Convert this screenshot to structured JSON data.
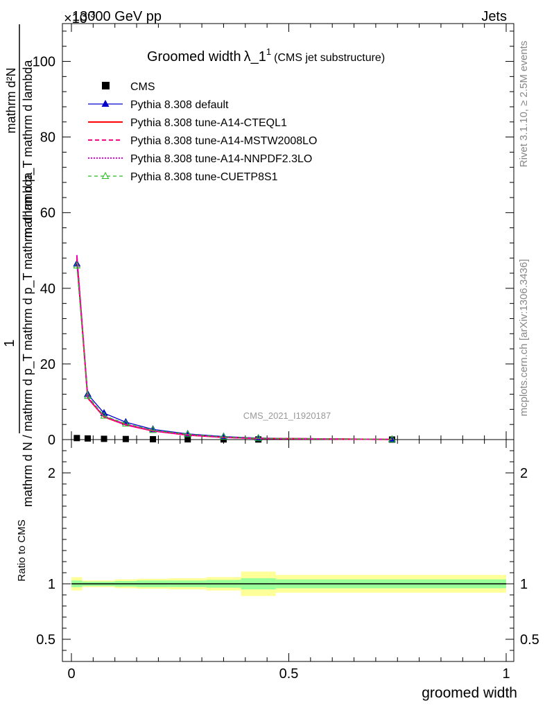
{
  "header": {
    "energy": "13000 GeV pp",
    "category": "Jets",
    "exponent": "×10",
    "exponent_power": "-3"
  },
  "side": {
    "rivet": "Rivet 3.1.10, ≥ 2.5M events",
    "mcplots": "mcplots.cern.ch [arXiv:1306.3436]"
  },
  "main_plot": {
    "title": "Groomed width",
    "title_symbol": "λ_1",
    "title_sup": "1",
    "title_suffix": "(CMS jet substructure)",
    "ylabel_numerator": "1",
    "ylabel_fraction_top": "mathrm d²N",
    "ylabel_fraction_bottom": "mathrm d p_T mathrm d lambda",
    "ylabel_denominator": "mathrm d N / mathrm d p_T mathrm d p_T mathrm d lambda",
    "watermark": "CMS_2021_I1920187"
  },
  "ratio_plot": {
    "ylabel": "Ratio to CMS",
    "xlabel": "groomed width"
  },
  "legend": [
    {
      "label": "CMS",
      "color": "#000000"
    },
    {
      "label": "Pythia 8.308 default",
      "color": "#0000cc"
    },
    {
      "label": "Pythia 8.308 tune-A14-CTEQL1",
      "color": "#ff0000"
    },
    {
      "label": "Pythia 8.308 tune-A14-MSTW2008LO",
      "color": "#ff0080"
    },
    {
      "label": "Pythia 8.308 tune-A14-NNPDF2.3LO",
      "color": "#e000e0"
    },
    {
      "label": "Pythia 8.308 tune-CUETP8S1",
      "color": "#22bb22"
    }
  ],
  "chart_data": [
    {
      "type": "line",
      "x": [
        0.0125,
        0.0375,
        0.075,
        0.125,
        0.1875,
        0.2675,
        0.35,
        0.43,
        0.7375
      ],
      "xlim": [
        0,
        1
      ],
      "ylim": [
        0,
        110
      ],
      "yticks": [
        0,
        20,
        40,
        60,
        80,
        100
      ],
      "y_scale_factor": "×10^-3",
      "series": [
        {
          "name": "CMS",
          "values": [
            0.4,
            0.3,
            0.2,
            0.15,
            0.1,
            0.07,
            0.05,
            0.03,
            0.01
          ]
        },
        {
          "name": "Pythia 8.308 default",
          "values": [
            46.5,
            12.0,
            7.0,
            4.6,
            2.7,
            1.5,
            0.8,
            0.4,
            0.05
          ]
        },
        {
          "name": "Pythia 8.308 tune-A14-CTEQL1",
          "values": [
            48.0,
            11.0,
            6.0,
            3.9,
            2.3,
            1.2,
            0.6,
            0.3,
            0.04
          ]
        },
        {
          "name": "Pythia 8.308 tune-A14-MSTW2008LO",
          "values": [
            48.5,
            11.2,
            6.2,
            4.0,
            2.4,
            1.3,
            0.6,
            0.3,
            0.04
          ]
        },
        {
          "name": "Pythia 8.308 tune-A14-NNPDF2.3LO",
          "values": [
            48.8,
            11.0,
            6.1,
            3.9,
            2.3,
            1.2,
            0.6,
            0.3,
            0.04
          ]
        },
        {
          "name": "Pythia 8.308 tune-CUETP8S1",
          "values": [
            46.0,
            11.5,
            6.3,
            4.2,
            2.5,
            1.4,
            0.7,
            0.35,
            0.05
          ]
        }
      ]
    },
    {
      "type": "area",
      "title": "Ratio to CMS",
      "xlim": [
        0,
        1
      ],
      "ylim": [
        0.3,
        2.3
      ],
      "yticks": [
        0.5,
        1,
        2
      ],
      "xticks": [
        0,
        0.5,
        1
      ],
      "bins": [
        {
          "x0": 0.0,
          "x1": 0.025,
          "inner": [
            0.97,
            1.03
          ],
          "outer": [
            0.94,
            1.06
          ]
        },
        {
          "x0": 0.025,
          "x1": 0.05,
          "inner": [
            0.98,
            1.02
          ],
          "outer": [
            0.97,
            1.03
          ]
        },
        {
          "x0": 0.05,
          "x1": 0.1,
          "inner": [
            0.98,
            1.02
          ],
          "outer": [
            0.97,
            1.03
          ]
        },
        {
          "x0": 0.1,
          "x1": 0.15,
          "inner": [
            0.975,
            1.025
          ],
          "outer": [
            0.96,
            1.04
          ]
        },
        {
          "x0": 0.15,
          "x1": 0.225,
          "inner": [
            0.97,
            1.03
          ],
          "outer": [
            0.955,
            1.045
          ]
        },
        {
          "x0": 0.225,
          "x1": 0.31,
          "inner": [
            0.97,
            1.03
          ],
          "outer": [
            0.95,
            1.05
          ]
        },
        {
          "x0": 0.31,
          "x1": 0.39,
          "inner": [
            0.965,
            1.035
          ],
          "outer": [
            0.94,
            1.06
          ]
        },
        {
          "x0": 0.39,
          "x1": 0.47,
          "inner": [
            0.95,
            1.05
          ],
          "outer": [
            0.89,
            1.11
          ]
        },
        {
          "x0": 0.47,
          "x1": 1.0,
          "inner": [
            0.96,
            1.04
          ],
          "outer": [
            0.92,
            1.08
          ]
        }
      ]
    }
  ]
}
